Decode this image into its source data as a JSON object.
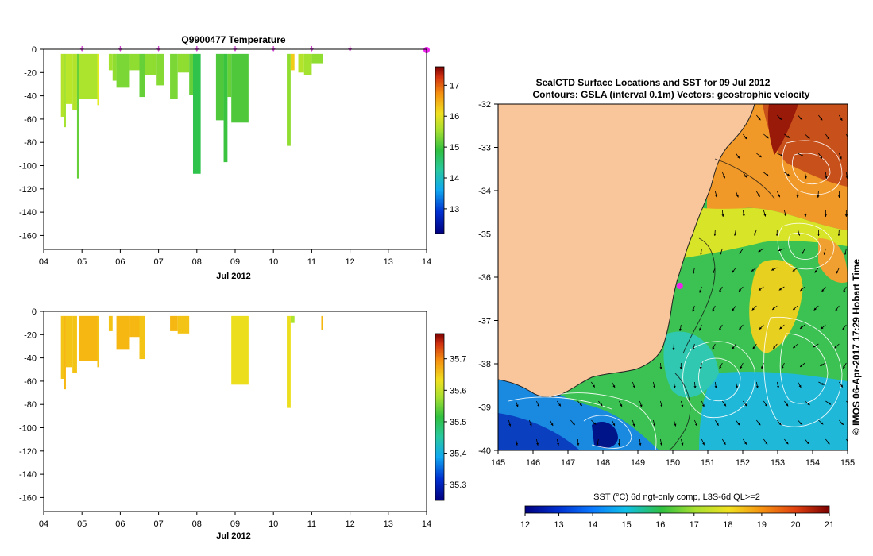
{
  "chart_data": [
    {
      "type": "heatmap",
      "title": "Q9900477  Temperature",
      "xlabel": "Jul 2012",
      "ylabel": "",
      "xlim": [
        4,
        14
      ],
      "ylim": [
        -172,
        0
      ],
      "x_ticks": [
        "04",
        "05",
        "06",
        "07",
        "08",
        "09",
        "10",
        "11",
        "12",
        "13",
        "14"
      ],
      "y_ticks": [
        "0",
        "-20",
        "-40",
        "-60",
        "-80",
        "-100",
        "-120",
        "-140",
        "-160"
      ],
      "surfacing_marker_days": [
        5,
        6,
        7,
        8,
        9,
        10,
        11,
        12,
        14
      ],
      "colorbar": {
        "min": 12.2,
        "max": 17.6,
        "ticks": [
          "13",
          "14",
          "15",
          "16",
          "17"
        ]
      },
      "profiles": [
        {
          "x0": 4.45,
          "x1": 4.52,
          "depth": 58,
          "value": 15.3
        },
        {
          "x0": 4.52,
          "x1": 4.58,
          "depth": 67,
          "value": 15.2
        },
        {
          "x0": 4.58,
          "x1": 4.75,
          "depth": 47,
          "value": 15.35
        },
        {
          "x0": 4.75,
          "x1": 4.87,
          "depth": 52,
          "value": 15.3
        },
        {
          "x0": 4.87,
          "x1": 4.92,
          "depth": 111,
          "value": 14.9
        },
        {
          "x0": 4.92,
          "x1": 5.4,
          "depth": 43,
          "value": 15.25
        },
        {
          "x0": 5.4,
          "x1": 5.45,
          "depth": 48,
          "value": 15.6
        },
        {
          "x0": 5.7,
          "x1": 5.8,
          "depth": 18,
          "value": 15.2
        },
        {
          "x0": 5.8,
          "x1": 5.9,
          "depth": 27,
          "value": 15.1
        },
        {
          "x0": 5.9,
          "x1": 6.25,
          "depth": 33,
          "value": 15.0
        },
        {
          "x0": 6.25,
          "x1": 6.5,
          "depth": 18,
          "value": 15.1
        },
        {
          "x0": 6.5,
          "x1": 6.65,
          "depth": 41,
          "value": 14.9
        },
        {
          "x0": 6.65,
          "x1": 6.95,
          "depth": 22,
          "value": 15.1
        },
        {
          "x0": 6.95,
          "x1": 7.15,
          "depth": 31,
          "value": 15.05
        },
        {
          "x0": 7.3,
          "x1": 7.5,
          "depth": 43,
          "value": 15.0
        },
        {
          "x0": 7.5,
          "x1": 7.8,
          "depth": 20,
          "value": 15.1
        },
        {
          "x0": 7.8,
          "x1": 7.9,
          "depth": 39,
          "value": 14.9
        },
        {
          "x0": 7.9,
          "x1": 8.1,
          "depth": 107,
          "value": 14.6
        },
        {
          "x0": 8.5,
          "x1": 8.7,
          "depth": 61,
          "value": 14.8
        },
        {
          "x0": 8.7,
          "x1": 8.8,
          "depth": 97,
          "value": 14.7
        },
        {
          "x0": 8.8,
          "x1": 8.9,
          "depth": 41,
          "value": 14.9
        },
        {
          "x0": 8.9,
          "x1": 9.35,
          "depth": 63,
          "value": 14.8
        },
        {
          "x0": 10.35,
          "x1": 10.45,
          "depth": 83,
          "value": 15.1
        },
        {
          "x0": 10.45,
          "x1": 10.55,
          "depth": 18,
          "value": 15.9
        },
        {
          "x0": 10.65,
          "x1": 10.8,
          "depth": 20,
          "value": 15.3
        },
        {
          "x0": 10.8,
          "x1": 11.0,
          "depth": 22,
          "value": 15.2
        },
        {
          "x0": 11.0,
          "x1": 11.3,
          "depth": 12,
          "value": 15.1
        }
      ]
    },
    {
      "type": "heatmap",
      "title": "",
      "xlabel": "Jul 2012",
      "ylabel": "",
      "xlim": [
        4,
        14
      ],
      "ylim": [
        -172,
        0
      ],
      "x_ticks": [
        "04",
        "05",
        "06",
        "07",
        "08",
        "09",
        "10",
        "11",
        "12",
        "13",
        "14"
      ],
      "y_ticks": [
        "0",
        "-20",
        "-40",
        "-60",
        "-80",
        "-100",
        "-120",
        "-140",
        "-160"
      ],
      "colorbar": {
        "min": 35.25,
        "max": 35.78,
        "ticks": [
          "35.3",
          "35.4",
          "35.5",
          "35.6",
          "35.7"
        ]
      },
      "profiles": [
        {
          "x0": 4.45,
          "x1": 4.52,
          "depth": 58,
          "value": 35.62
        },
        {
          "x0": 4.52,
          "x1": 4.58,
          "depth": 67,
          "value": 35.63
        },
        {
          "x0": 4.58,
          "x1": 4.75,
          "depth": 48,
          "value": 35.62
        },
        {
          "x0": 4.75,
          "x1": 4.87,
          "depth": 53,
          "value": 35.62
        },
        {
          "x0": 4.92,
          "x1": 5.4,
          "depth": 43,
          "value": 35.63
        },
        {
          "x0": 5.4,
          "x1": 5.45,
          "depth": 48,
          "value": 35.62
        },
        {
          "x0": 5.7,
          "x1": 5.8,
          "depth": 17,
          "value": 35.62
        },
        {
          "x0": 5.9,
          "x1": 6.25,
          "depth": 33,
          "value": 35.63
        },
        {
          "x0": 6.25,
          "x1": 6.5,
          "depth": 22,
          "value": 35.63
        },
        {
          "x0": 6.5,
          "x1": 6.65,
          "depth": 41,
          "value": 35.62
        },
        {
          "x0": 7.3,
          "x1": 7.5,
          "depth": 17,
          "value": 35.63
        },
        {
          "x0": 7.5,
          "x1": 7.8,
          "depth": 19,
          "value": 35.62
        },
        {
          "x0": 8.9,
          "x1": 9.35,
          "depth": 63,
          "value": 35.6
        },
        {
          "x0": 10.35,
          "x1": 10.45,
          "depth": 83,
          "value": 35.6
        },
        {
          "x0": 10.45,
          "x1": 10.55,
          "depth": 10,
          "value": 35.55
        },
        {
          "x0": 11.25,
          "x1": 11.3,
          "depth": 16,
          "value": 35.63
        }
      ]
    },
    {
      "type": "heatmap",
      "title": "SealCTD Surface Locations and SST for 09 Jul 2012",
      "subtitle": "Contours: GSLA (interval 0.1m) Vectors: geostrophic velocity",
      "side_label": "© IMOS 06-Apr-2017 17:29 Hobart Time",
      "xlim": [
        145,
        155
      ],
      "ylim": [
        -40,
        -32
      ],
      "x_ticks": [
        "145",
        "146",
        "147",
        "148",
        "149",
        "150",
        "151",
        "152",
        "153",
        "154",
        "155"
      ],
      "y_ticks": [
        "-32",
        "-33",
        "-34",
        "-35",
        "-36",
        "-37",
        "-38",
        "-39",
        "-40"
      ],
      "land_color": "#f9c59b",
      "seal_location": {
        "lon": 150.2,
        "lat": -36.2
      },
      "colorbar": {
        "label": "SST (°C) 6d ngt-only comp, L3S-6d QL>=2",
        "min": 12,
        "max": 21,
        "ticks": [
          "12",
          "13",
          "14",
          "15",
          "16",
          "17",
          "18",
          "19",
          "20",
          "21"
        ]
      }
    }
  ],
  "colors": {
    "marker": "#cc44cc",
    "seal_marker": "#ee22ee",
    "colormap": [
      "#00007f",
      "#0020c0",
      "#0a60ff",
      "#10b0f0",
      "#2ad8a8",
      "#30c040",
      "#9ae030",
      "#e8ee20",
      "#f8b010",
      "#ee6010",
      "#b81808",
      "#7a0000"
    ]
  }
}
